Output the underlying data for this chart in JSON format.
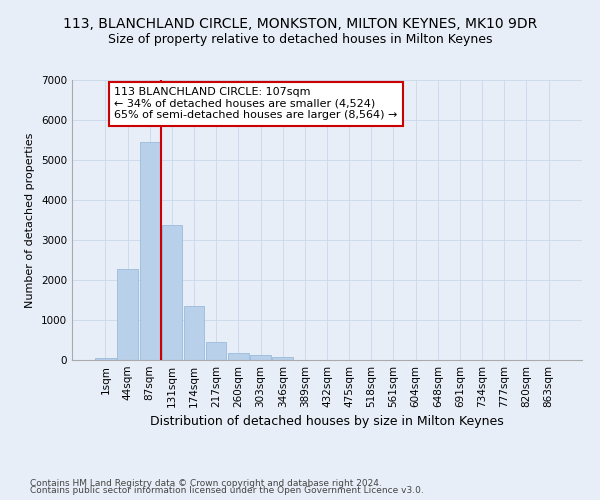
{
  "title": "113, BLANCHLAND CIRCLE, MONKSTON, MILTON KEYNES, MK10 9DR",
  "subtitle": "Size of property relative to detached houses in Milton Keynes",
  "xlabel": "Distribution of detached houses by size in Milton Keynes",
  "ylabel": "Number of detached properties",
  "footer_line1": "Contains HM Land Registry data © Crown copyright and database right 2024.",
  "footer_line2": "Contains public sector information licensed under the Open Government Licence v3.0.",
  "bar_labels": [
    "1sqm",
    "44sqm",
    "87sqm",
    "131sqm",
    "174sqm",
    "217sqm",
    "260sqm",
    "303sqm",
    "346sqm",
    "389sqm",
    "432sqm",
    "475sqm",
    "518sqm",
    "561sqm",
    "604sqm",
    "648sqm",
    "691sqm",
    "734sqm",
    "777sqm",
    "820sqm",
    "863sqm"
  ],
  "bar_values": [
    55,
    2270,
    5450,
    3380,
    1340,
    460,
    185,
    120,
    75,
    10,
    0,
    0,
    0,
    0,
    0,
    0,
    0,
    0,
    0,
    0,
    0
  ],
  "bar_color": "#b8d0ea",
  "bar_edge_color": "#90b4d8",
  "vline_x_index": 2,
  "vline_color": "#cc0000",
  "ylim": [
    0,
    7000
  ],
  "yticks": [
    0,
    1000,
    2000,
    3000,
    4000,
    5000,
    6000,
    7000
  ],
  "annotation_text": "113 BLANCHLAND CIRCLE: 107sqm\n← 34% of detached houses are smaller (4,524)\n65% of semi-detached houses are larger (8,564) →",
  "annotation_box_color": "#ffffff",
  "annotation_box_edge": "#cc0000",
  "grid_color": "#c8d8ec",
  "bg_color": "#e8eef8",
  "title_fontsize": 10,
  "subtitle_fontsize": 9,
  "xlabel_fontsize": 9,
  "ylabel_fontsize": 8,
  "tick_fontsize": 7.5,
  "annotation_fontsize": 8,
  "footer_fontsize": 6.5
}
